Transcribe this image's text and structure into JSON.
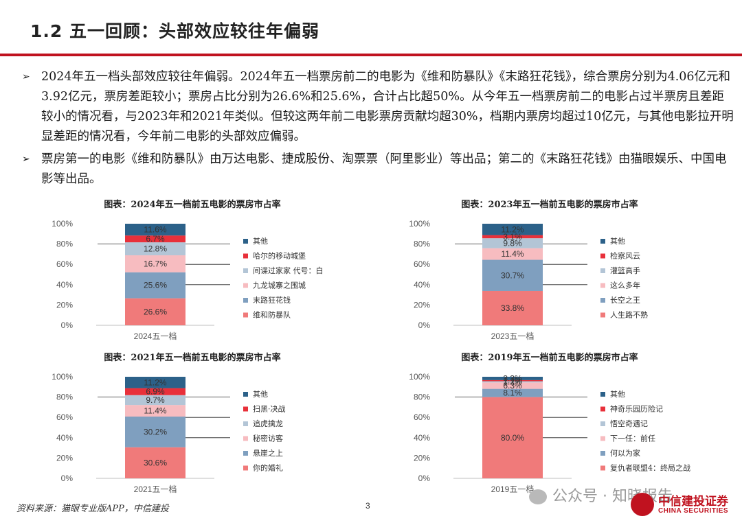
{
  "header": {
    "title": "1.2 五一回顾：头部效应较往年偏弱"
  },
  "bullets": [
    "2024年五一档头部效应较往年偏弱。2024年五一档票房前二的电影为《维和防暴队》《末路狂花钱》，综合票房分别为4.06亿元和3.92亿元，票房差距较小；票房占比分别为26.6%和25.6%，合计占比超50%。从今年五一档票房前二的电影占过半票房且差距较小的情况看，与2023年和2021年类似。但较这两年前二电影票房贡献均超30%，档期内票房均超过10亿元，与其他电影拉开明显差距的情况看，今年前二电影的头部效应偏弱。",
    "票房第一的电影《维和防暴队》由万达电影、捷成股份、淘票票（阿里影业）等出品；第二的《末路狂花钱》由猫眼娱乐、中国电影等出品。"
  ],
  "bullet_icon": "arrow-right-icon",
  "footer": {
    "source": "资料来源：猫眼专业版APP，中信建投",
    "page": "3"
  },
  "watermark": {
    "text": "公众号 · 知晓报告",
    "icon": "wechat-icon"
  },
  "logo": {
    "cn": "中信建投证券",
    "en": "CHINA SECURITIES"
  },
  "colors": {
    "seg1": "#f07a7a",
    "seg2": "#7f9fbf",
    "seg3": "#f7bcc0",
    "seg4": "#b3c5d6",
    "seg5": "#e8303a",
    "seg6": "#2c6189",
    "accent": "#c0121f"
  },
  "chart_data": [
    {
      "type": "bar",
      "stacked": true,
      "title": "图表：2024年五一档前五电影的票房市占率",
      "categories": [
        "2024五一档"
      ],
      "y_ticks": [
        "0%",
        "20%",
        "40%",
        "60%",
        "80%",
        "100%"
      ],
      "ylim": [
        0,
        100
      ],
      "series": [
        {
          "name": "维和防暴队",
          "values": [
            26.6
          ],
          "label": "26.6%"
        },
        {
          "name": "末路狂花钱",
          "values": [
            25.6
          ],
          "label": "25.6%"
        },
        {
          "name": "九龙城寨之围城",
          "values": [
            16.7
          ],
          "label": "16.7%"
        },
        {
          "name": "间谍过家家 代号：白",
          "values": [
            12.8
          ],
          "label": "12.8%"
        },
        {
          "name": "哈尔的移动城堡",
          "values": [
            6.7
          ],
          "label": "6.7%"
        },
        {
          "name": "其他",
          "values": [
            11.6
          ],
          "label": "11.6%"
        }
      ],
      "legend": "right"
    },
    {
      "type": "bar",
      "stacked": true,
      "title": "图表：2023年五一档前五电影的票房市占率",
      "categories": [
        "2023五一档"
      ],
      "y_ticks": [
        "0%",
        "20%",
        "40%",
        "60%",
        "80%",
        "100%"
      ],
      "ylim": [
        0,
        100
      ],
      "series": [
        {
          "name": "人生路不熟",
          "values": [
            33.8
          ],
          "label": "33.8%"
        },
        {
          "name": "长空之王",
          "values": [
            30.7
          ],
          "label": "30.7%"
        },
        {
          "name": "这么多年",
          "values": [
            11.4
          ],
          "label": "11.4%"
        },
        {
          "name": "灌篮高手",
          "values": [
            9.8
          ],
          "label": "9.8%"
        },
        {
          "name": "检察风云",
          "values": [
            3.1
          ],
          "label": "3.1%"
        },
        {
          "name": "其他",
          "values": [
            11.2
          ],
          "label": "11.2%"
        }
      ],
      "legend": "right"
    },
    {
      "type": "bar",
      "stacked": true,
      "title": "图表：2021年五一档前五电影的票房市占率",
      "categories": [
        "2021五一档"
      ],
      "y_ticks": [
        "0%",
        "20%",
        "40%",
        "60%",
        "80%",
        "100%"
      ],
      "ylim": [
        0,
        100
      ],
      "series": [
        {
          "name": "你的婚礼",
          "values": [
            30.6
          ],
          "label": "30.6%"
        },
        {
          "name": "悬崖之上",
          "values": [
            30.2
          ],
          "label": "30.2%"
        },
        {
          "name": "秘密访客",
          "values": [
            11.4
          ],
          "label": "11.4%"
        },
        {
          "name": "追虎擒龙",
          "values": [
            9.7
          ],
          "label": "9.7%"
        },
        {
          "name": "扫黑·决战",
          "values": [
            6.9
          ],
          "label": "6.9%"
        },
        {
          "name": "其他",
          "values": [
            11.2
          ],
          "label": "11.2%"
        }
      ],
      "legend": "right"
    },
    {
      "type": "bar",
      "stacked": true,
      "title": "图表：2019年五一档前五电影的票房市占率",
      "categories": [
        "2019五一档"
      ],
      "y_ticks": [
        "0%",
        "20%",
        "40%",
        "60%",
        "80%",
        "100%"
      ],
      "ylim": [
        0,
        100
      ],
      "series": [
        {
          "name": "复仇者联盟4：终局之战",
          "values": [
            80.0
          ],
          "label": "80.0%"
        },
        {
          "name": "何以为家",
          "values": [
            8.1
          ],
          "label": "8.1%"
        },
        {
          "name": "下一任：前任",
          "values": [
            6.3
          ],
          "label": "6.3%"
        },
        {
          "name": "悟空奇遇记",
          "values": [
            1.2
          ],
          "label": "1.2%"
        },
        {
          "name": "神奇乐园历险记",
          "values": [
            1.1
          ],
          "label": "1.1%"
        },
        {
          "name": "其他",
          "values": [
            3.3
          ],
          "label": "3.3%"
        }
      ],
      "legend": "right"
    }
  ]
}
